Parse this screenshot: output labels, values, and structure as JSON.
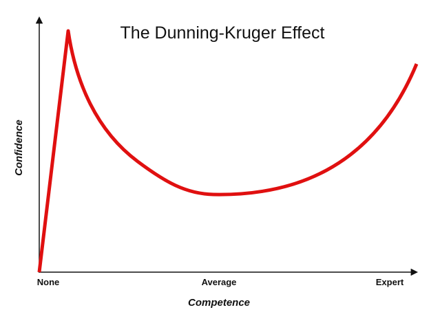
{
  "title": "The Dunning-Kruger Effect",
  "axes": {
    "x_label": "Competence",
    "y_label": "Confidence",
    "x_ticks": [
      "None",
      "Average",
      "Expert"
    ]
  }
}
